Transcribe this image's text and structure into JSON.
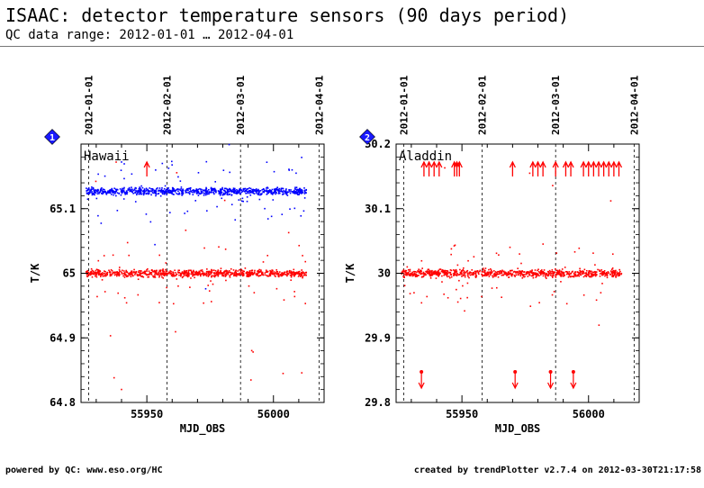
{
  "header": {
    "title": "ISAAC: detector temperature sensors (90 days period)",
    "subtitle": "QC data range: 2012-01-01 … 2012-04-01"
  },
  "footer": {
    "left": "powered by QC: www.eso.org/HC",
    "right": "created by trendPlotter v2.7.4 on 2012-03-30T21:17:58"
  },
  "colors": {
    "blue": "#0000ff",
    "red": "#ff0000",
    "badge": "#1a1aff"
  },
  "chart_data": [
    {
      "type": "scatter",
      "badge": "1",
      "label": "Hawaii",
      "xlabel": "MJD_OBS",
      "ylabel": "T/K",
      "xlim": [
        55924,
        56020
      ],
      "ylim": [
        64.8,
        65.2
      ],
      "x_ticks": [
        55950,
        56000
      ],
      "y_ticks": [
        "64.8",
        "64.9",
        "65",
        "65.1"
      ],
      "date_markers": [
        {
          "label": "2012-01-01",
          "mjd": 55927
        },
        {
          "label": "2012-02-01",
          "mjd": 55958
        },
        {
          "label": "2012-03-01",
          "mjd": 55987
        },
        {
          "label": "2012-04-01",
          "mjd": 56018
        }
      ],
      "grid": false,
      "series": [
        {
          "color": "blue",
          "x_range": [
            55926,
            56013
          ],
          "level": 65.127,
          "spread": 0.004
        },
        {
          "color": "red",
          "x_range": [
            55926,
            56013
          ],
          "level": 65.0,
          "spread": 0.004
        }
      ],
      "outliers_above": [
        {
          "mjd": 55950
        }
      ],
      "outliers_below": []
    },
    {
      "type": "scatter",
      "badge": "2",
      "label": "Aladdin",
      "xlabel": "MJD_OBS",
      "ylabel": "T/K",
      "xlim": [
        55924,
        56020
      ],
      "ylim": [
        29.8,
        30.2
      ],
      "x_ticks": [
        55950,
        56000
      ],
      "y_ticks": [
        "29.8",
        "29.9",
        "30",
        "30.1",
        "30.2"
      ],
      "date_markers": [
        {
          "label": "2012-01-01",
          "mjd": 55927
        },
        {
          "label": "2012-02-01",
          "mjd": 55958
        },
        {
          "label": "2012-03-01",
          "mjd": 55987
        },
        {
          "label": "2012-04-01",
          "mjd": 56018
        }
      ],
      "grid": false,
      "series": [
        {
          "color": "red",
          "x_range": [
            55926,
            56013
          ],
          "level": 30.0,
          "spread": 0.004
        }
      ],
      "outliers_above": [
        {
          "mjd": 55935
        },
        {
          "mjd": 55937
        },
        {
          "mjd": 55939
        },
        {
          "mjd": 55941
        },
        {
          "mjd": 55947
        },
        {
          "mjd": 55948
        },
        {
          "mjd": 55949
        },
        {
          "mjd": 55970
        },
        {
          "mjd": 55978
        },
        {
          "mjd": 55980
        },
        {
          "mjd": 55982
        },
        {
          "mjd": 55987
        },
        {
          "mjd": 55991
        },
        {
          "mjd": 55993
        },
        {
          "mjd": 55998
        },
        {
          "mjd": 56000
        },
        {
          "mjd": 56002
        },
        {
          "mjd": 56004
        },
        {
          "mjd": 56006
        },
        {
          "mjd": 56008
        },
        {
          "mjd": 56010
        },
        {
          "mjd": 56012
        }
      ],
      "outliers_below": [
        {
          "mjd": 55934
        },
        {
          "mjd": 55971
        },
        {
          "mjd": 55985
        },
        {
          "mjd": 55994
        }
      ]
    }
  ]
}
